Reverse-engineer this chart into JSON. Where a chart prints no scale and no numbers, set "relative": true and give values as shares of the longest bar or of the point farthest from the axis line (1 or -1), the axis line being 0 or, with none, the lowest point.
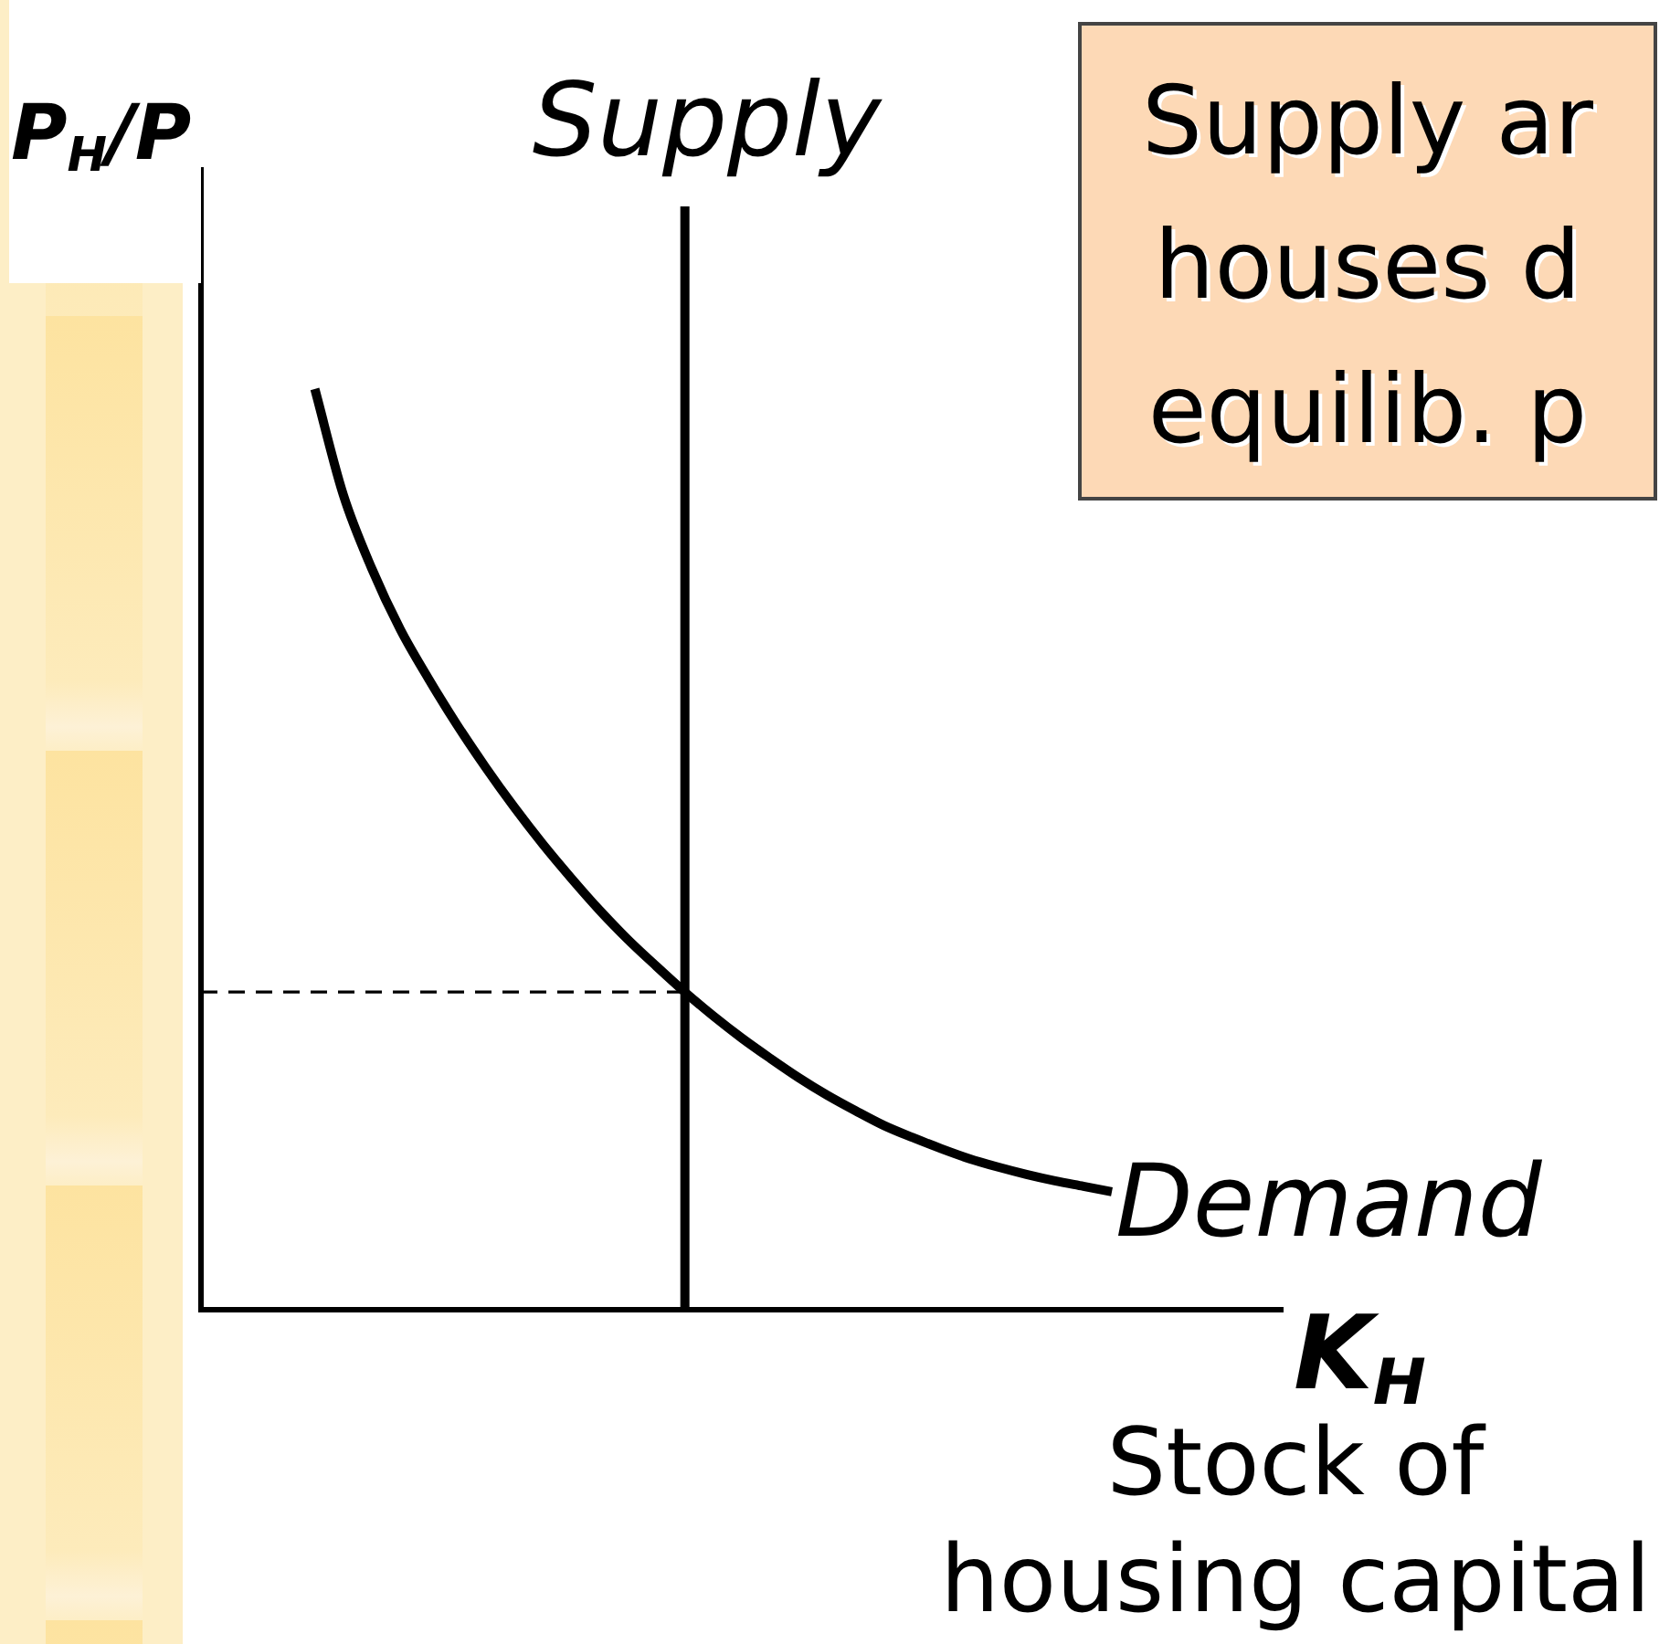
{
  "chart_data": {
    "type": "line",
    "relative": true,
    "ylabel": "P$_{H}$/P",
    "xlabel": "K$_{H}$",
    "annotations": [
      "Supply",
      "Supply ar\nhouses d\nequilib. p",
      "Stock of housing capital"
    ],
    "categories": [
      null,
      null,
      null,
      null,
      null,
      null,
      null,
      null,
      null,
      null,
      null,
      null,
      null,
      null,
      null,
      null,
      null,
      null,
      null,
      null,
      null,
      null,
      null,
      null,
      null,
      null,
      null,
      null,
      null,
      null,
      null,
      null,
      null,
      null,
      null,
      null,
      null,
      null,
      null
    ],
    "series": [
      {
        "name": "Demand",
        "color": "#000000",
        "values": [
          null,
          null,
          null,
          null,
          1,
          0.885,
          0.805,
          0.739,
          0.685,
          0.635,
          0.589,
          0.546,
          0.506,
          0.469,
          0.434,
          0.402,
          0.373,
          0.345,
          0.319,
          0.295,
          0.273,
          0.252,
          0.233,
          0.216,
          0.2,
          0.187,
          0.175,
          0.164,
          0.155,
          0.147,
          0.14,
          0.134,
          0.128,
          null,
          null,
          null,
          null,
          null,
          null
        ]
      }
    ],
    "ref_lines": [
      {
        "axis": "y",
        "value": 0.345,
        "color": "#000000",
        "line_style": "dashed"
      }
    ],
    "legend": false,
    "marker": "none",
    "tick_labels": false
  }
}
